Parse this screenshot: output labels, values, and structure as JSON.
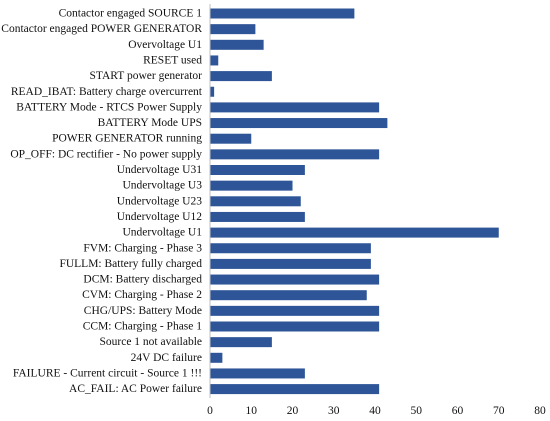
{
  "chart_data": {
    "type": "bar",
    "orientation": "horizontal",
    "categories": [
      "Contactor engaged SOURCE 1",
      "Contactor engaged POWER GENERATOR",
      "Overvoltage U1",
      "RESET used",
      "START power generator",
      "READ_IBAT: Battery charge overcurrent",
      "BATTERY Mode - RTCS Power Supply",
      "BATTERY Mode UPS",
      "POWER GENERATOR running",
      "OP_OFF: DC rectifier - No power supply",
      "Undervoltage U31",
      "Undervoltage U3",
      "Undervoltage U23",
      "Undervoltage U12",
      "Undervoltage U1",
      "FVM: Charging - Phase 3",
      "FULLM: Battery fully charged",
      "DCM: Battery discharged",
      "CVM: Charging - Phase 2",
      "CHG/UPS: Battery Mode",
      "CCM: Charging - Phase 1",
      "Source 1 not available",
      "24V DC failure",
      "FAILURE - Current circuit - Source 1 !!!",
      "AC_FAIL: AC Power failure"
    ],
    "values": [
      35,
      11,
      13,
      2,
      15,
      1,
      41,
      43,
      10,
      41,
      23,
      20,
      22,
      23,
      70,
      39,
      39,
      41,
      38,
      41,
      41,
      15,
      3,
      23,
      41
    ],
    "xlim": [
      0,
      80
    ],
    "xticks": [
      0,
      10,
      20,
      30,
      40,
      50,
      60,
      70,
      80
    ],
    "bar_color": "#2E5597",
    "grid": false,
    "title": "",
    "xlabel": "",
    "ylabel": ""
  }
}
